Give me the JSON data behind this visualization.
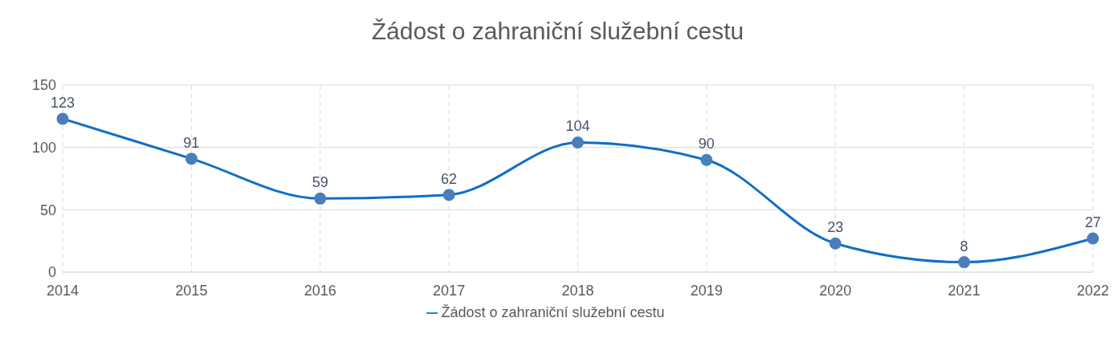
{
  "chart_data": {
    "type": "line",
    "title": "Žádost o zahraniční služební cestu",
    "categories": [
      "2014",
      "2015",
      "2016",
      "2017",
      "2018",
      "2019",
      "2020",
      "2021",
      "2022"
    ],
    "series": [
      {
        "name": "Žádost o zahraniční služební cestu",
        "color": "#0f6fc6",
        "values": [
          123,
          91,
          59,
          62,
          104,
          90,
          23,
          8,
          27
        ]
      }
    ],
    "ylim": [
      0,
      150
    ],
    "yticks": [
      0,
      50,
      100,
      150
    ],
    "grid": true,
    "legend": "bottom",
    "marker": "circle",
    "line_style": "solid",
    "data_labels": true
  }
}
